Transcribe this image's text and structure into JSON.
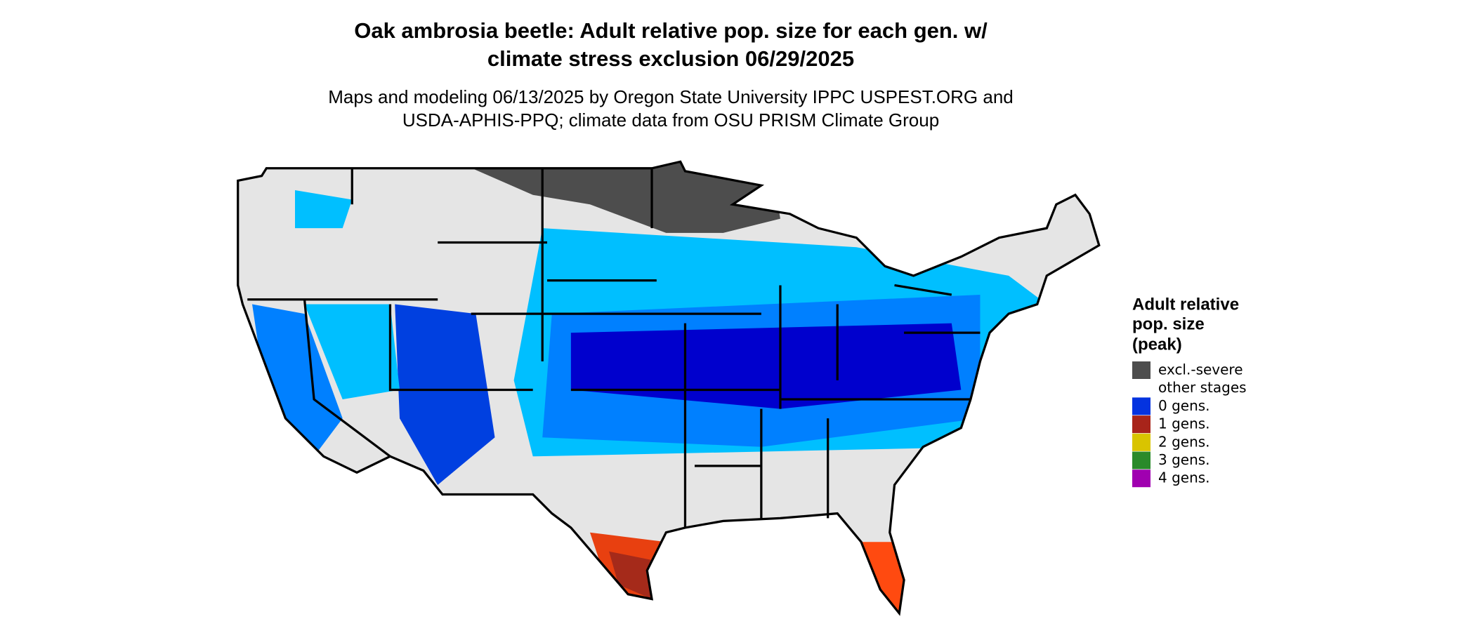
{
  "title": [
    "Oak ambrosia beetle: Adult relative pop. size for each gen. w/",
    "climate stress exclusion 06/29/2025"
  ],
  "subtitle": [
    "Maps and modeling 06/13/2025 by Oregon State University IPPC USPEST.ORG and",
    "USDA-APHIS-PPQ; climate data from OSU PRISM Climate Group"
  ],
  "legend": {
    "title": [
      "Adult relative",
      "pop. size",
      "(peak)"
    ],
    "items": [
      {
        "label": "excl.-severe",
        "color": "#4d4d4d"
      },
      {
        "label": "other stages",
        "color": "#ffffff"
      },
      {
        "label": "0 gens.",
        "color": "#0433e0"
      },
      {
        "label": "1 gens.",
        "color": "#a8241a"
      },
      {
        "label": "2 gens.",
        "color": "#d9c400"
      },
      {
        "label": "3 gens.",
        "color": "#2a8a2a"
      },
      {
        "label": "4 gens.",
        "color": "#a000b0"
      }
    ]
  }
}
